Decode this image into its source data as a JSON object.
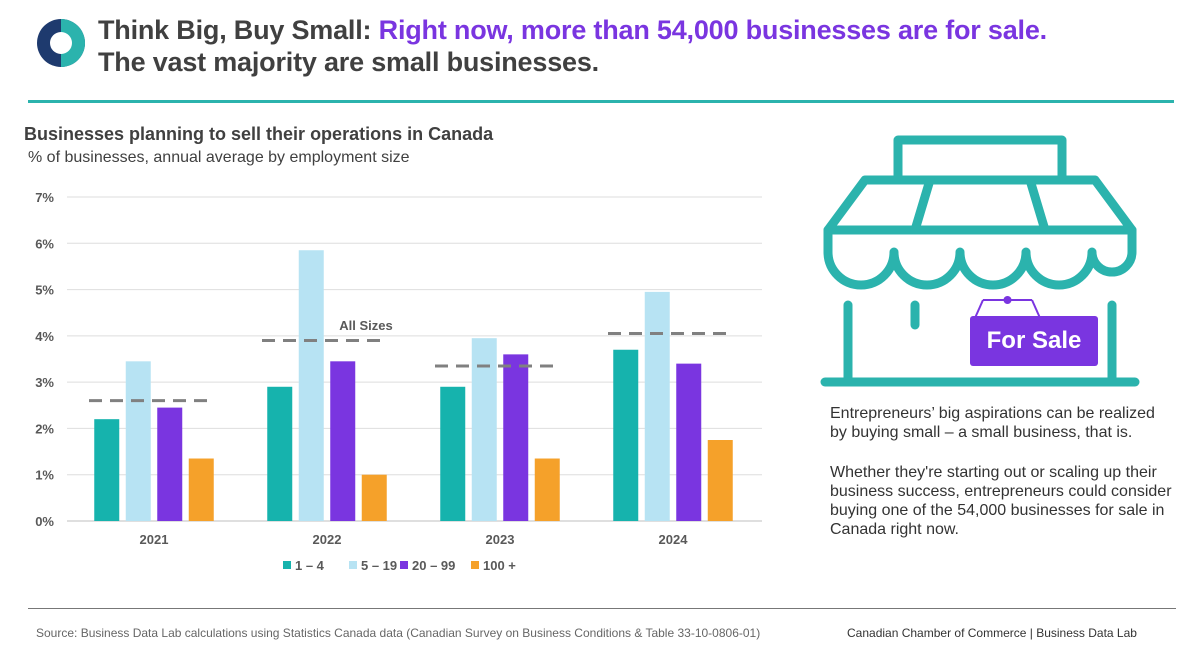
{
  "header": {
    "title_lead": "Think Big, Buy Small:",
    "title_accent": "Right now, more than 54,000 businesses are for sale.",
    "title_tail": "The vast majority are small businesses."
  },
  "colors": {
    "teal": "#2bb3ad",
    "light_blue": "#b7e3f3",
    "purple": "#7a35e0",
    "orange": "#f5a12a",
    "navy": "#1e3a6e",
    "dashed": "#888888"
  },
  "chart_data": {
    "type": "bar",
    "title": "Businesses planning to sell their operations in Canada",
    "subtitle": "% of businesses, annual average by employment size",
    "categories": [
      "2021",
      "2022",
      "2023",
      "2024"
    ],
    "series": [
      {
        "name": "1 – 4",
        "color": "#16b3ad",
        "values": [
          2.2,
          2.9,
          2.9,
          3.7
        ]
      },
      {
        "name": "5 – 19",
        "color": "#b7e3f3",
        "values": [
          3.45,
          5.85,
          3.95,
          4.95
        ]
      },
      {
        "name": "20 – 99",
        "color": "#7a35e0",
        "values": [
          2.45,
          3.45,
          3.6,
          3.4
        ]
      },
      {
        "name": "100 +",
        "color": "#f5a12a",
        "values": [
          1.35,
          1.0,
          1.35,
          1.75
        ]
      }
    ],
    "all_sizes": {
      "name": "All Sizes",
      "values": [
        2.6,
        3.9,
        3.35,
        4.05
      ]
    },
    "ylim": [
      0,
      7
    ],
    "yticks": [
      "0%",
      "1%",
      "2%",
      "3%",
      "4%",
      "5%",
      "6%",
      "7%"
    ],
    "grid": true,
    "legend": "bottom-center"
  },
  "sidebar": {
    "sign_label": "For Sale",
    "paragraph1": "Entrepreneurs’ big aspirations can be realized by buying small – a small business, that is.",
    "paragraph2": "Whether they're starting out or scaling up their business success, entrepreneurs could consider buying one of the 54,000 businesses for sale in Canada right now."
  },
  "footer": {
    "source": "Source: Business Data Lab calculations using Statistics Canada data (Canadian Survey on Business Conditions & Table 33-10-0806-01)",
    "credit": "Canadian Chamber of Commerce | Business Data Lab"
  }
}
